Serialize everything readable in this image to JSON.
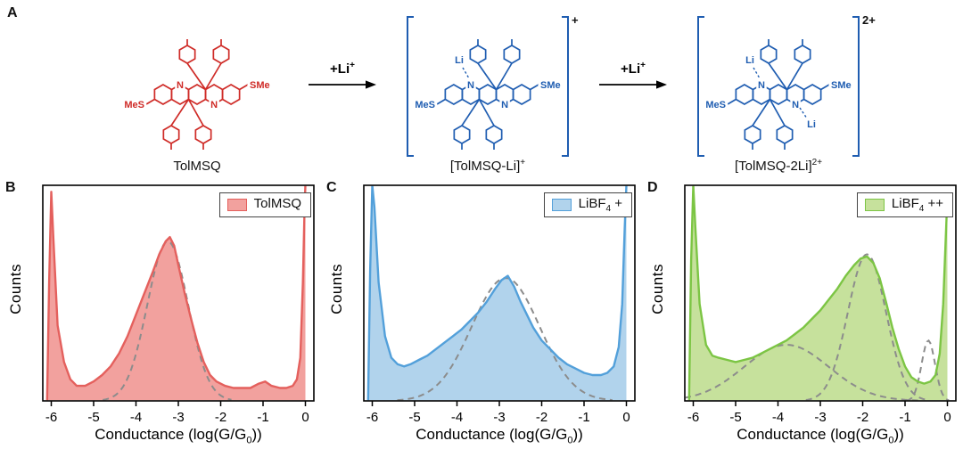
{
  "figure": {
    "panel_a_label": "A",
    "arrow_label_base": "+Li",
    "arrow_label_sup": "+",
    "molecules": [
      {
        "caption_base": "TolMSQ",
        "caption_sup": "",
        "color": "#cf2b27",
        "left_group": "MeS",
        "right_group": "SMe",
        "n_top": "N",
        "n_bottom": "N",
        "li_top": "",
        "li_bottom": "",
        "bracket": false,
        "charge": ""
      },
      {
        "caption_base": "[TolMSQ-Li]",
        "caption_sup": "+",
        "color": "#1f5db1",
        "left_group": "MeS",
        "right_group": "SMe",
        "n_top": "N",
        "n_bottom": "N",
        "li_top": "Li",
        "li_bottom": "",
        "bracket": true,
        "charge": "+"
      },
      {
        "caption_base": "[TolMSQ-2Li]",
        "caption_sup": "2+",
        "color": "#1f5db1",
        "left_group": "MeS",
        "right_group": "SMe",
        "n_top": "N",
        "n_bottom": "N",
        "li_top": "Li",
        "li_bottom": "Li",
        "bracket": true,
        "charge": "2+"
      }
    ]
  },
  "chart_data": [
    {
      "type": "area",
      "panel": "B",
      "legend_base": "TolMSQ",
      "legend_sub": "",
      "legend_post": "",
      "line_color": "#e4605d",
      "fill_color": "#f2a19e",
      "ylabel": "Counts",
      "xlabel_pre": "Conductance (log(G/G",
      "xlabel_sub": "0",
      "xlabel_post": "))",
      "xlim": [
        -6.2,
        0.2
      ],
      "xticks": [
        -6,
        -5,
        -4,
        -3,
        -2,
        -1,
        0
      ],
      "curve_x": [
        -6.1,
        -6.05,
        -6.0,
        -5.95,
        -5.85,
        -5.7,
        -5.55,
        -5.4,
        -5.2,
        -5.0,
        -4.8,
        -4.6,
        -4.4,
        -4.2,
        -4.0,
        -3.8,
        -3.6,
        -3.45,
        -3.3,
        -3.2,
        -3.1,
        -3.0,
        -2.85,
        -2.7,
        -2.55,
        -2.4,
        -2.25,
        -2.1,
        -1.9,
        -1.7,
        -1.5,
        -1.3,
        -1.1,
        -0.95,
        -0.8,
        -0.6,
        -0.45,
        -0.3,
        -0.2,
        -0.12,
        -0.06,
        -0.02,
        0.0
      ],
      "curve_y": [
        0.0,
        0.55,
        0.97,
        0.75,
        0.35,
        0.18,
        0.1,
        0.07,
        0.07,
        0.09,
        0.12,
        0.16,
        0.22,
        0.3,
        0.4,
        0.5,
        0.6,
        0.68,
        0.74,
        0.76,
        0.72,
        0.63,
        0.5,
        0.38,
        0.27,
        0.18,
        0.12,
        0.09,
        0.07,
        0.06,
        0.06,
        0.06,
        0.08,
        0.09,
        0.07,
        0.06,
        0.06,
        0.07,
        0.1,
        0.2,
        0.55,
        0.9,
        1.0
      ],
      "fits": [
        {
          "center": -3.25,
          "amp": 0.74,
          "sigma": 0.48
        }
      ]
    },
    {
      "type": "area",
      "panel": "C",
      "legend_base": "LiBF",
      "legend_sub": "4",
      "legend_post": " +",
      "line_color": "#53a0da",
      "fill_color": "#b1d3ec",
      "ylabel": "Counts",
      "xlabel_pre": "Conductance (log(G/G",
      "xlabel_sub": "0",
      "xlabel_post": "))",
      "xlim": [
        -6.2,
        0.2
      ],
      "xticks": [
        -6,
        -5,
        -4,
        -3,
        -2,
        -1,
        0
      ],
      "curve_x": [
        -6.1,
        -6.05,
        -6.0,
        -5.95,
        -5.85,
        -5.7,
        -5.55,
        -5.4,
        -5.25,
        -5.1,
        -4.9,
        -4.7,
        -4.5,
        -4.3,
        -4.1,
        -3.9,
        -3.7,
        -3.5,
        -3.3,
        -3.1,
        -2.95,
        -2.8,
        -2.65,
        -2.5,
        -2.35,
        -2.2,
        -2.0,
        -1.8,
        -1.6,
        -1.4,
        -1.2,
        -1.0,
        -0.8,
        -0.6,
        -0.45,
        -0.3,
        -0.18,
        -0.1,
        -0.04,
        0.0
      ],
      "curve_y": [
        0.0,
        0.6,
        1.0,
        0.9,
        0.55,
        0.3,
        0.2,
        0.17,
        0.16,
        0.17,
        0.19,
        0.21,
        0.24,
        0.27,
        0.3,
        0.33,
        0.37,
        0.41,
        0.46,
        0.52,
        0.56,
        0.58,
        0.53,
        0.46,
        0.4,
        0.34,
        0.28,
        0.24,
        0.2,
        0.17,
        0.15,
        0.13,
        0.12,
        0.12,
        0.13,
        0.16,
        0.25,
        0.45,
        0.8,
        1.0
      ],
      "fits": [
        {
          "center": -2.85,
          "amp": 0.57,
          "sigma": 0.8
        }
      ]
    },
    {
      "type": "area",
      "panel": "D",
      "legend_base": "LiBF",
      "legend_sub": "4",
      "legend_post": " ++",
      "line_color": "#7cc544",
      "fill_color": "#c6e19c",
      "ylabel": "Counts",
      "xlabel_pre": "Conductance (log(G/G",
      "xlabel_sub": "0",
      "xlabel_post": "))",
      "xlim": [
        -6.2,
        0.2
      ],
      "xticks": [
        -6,
        -5,
        -4,
        -3,
        -2,
        -1,
        0
      ],
      "curve_x": [
        -6.1,
        -6.05,
        -6.0,
        -5.95,
        -5.85,
        -5.7,
        -5.55,
        -5.4,
        -5.2,
        -5.0,
        -4.8,
        -4.6,
        -4.4,
        -4.2,
        -4.0,
        -3.8,
        -3.6,
        -3.4,
        -3.2,
        -3.0,
        -2.8,
        -2.6,
        -2.4,
        -2.2,
        -2.05,
        -1.9,
        -1.75,
        -1.6,
        -1.45,
        -1.3,
        -1.15,
        -1.0,
        -0.85,
        -0.7,
        -0.55,
        -0.4,
        -0.28,
        -0.18,
        -0.1,
        -0.04,
        0.0
      ],
      "curve_y": [
        0.0,
        0.65,
        1.0,
        0.8,
        0.45,
        0.26,
        0.21,
        0.2,
        0.19,
        0.18,
        0.19,
        0.2,
        0.22,
        0.24,
        0.26,
        0.28,
        0.31,
        0.34,
        0.38,
        0.42,
        0.47,
        0.52,
        0.58,
        0.63,
        0.66,
        0.67,
        0.64,
        0.57,
        0.46,
        0.34,
        0.24,
        0.16,
        0.11,
        0.09,
        0.08,
        0.09,
        0.12,
        0.22,
        0.45,
        0.75,
        0.95
      ],
      "fits": [
        {
          "center": -3.8,
          "amp": 0.26,
          "sigma": 1.0
        },
        {
          "center": -1.9,
          "amp": 0.68,
          "sigma": 0.45
        },
        {
          "center": -0.45,
          "amp": 0.28,
          "sigma": 0.16
        }
      ]
    }
  ]
}
